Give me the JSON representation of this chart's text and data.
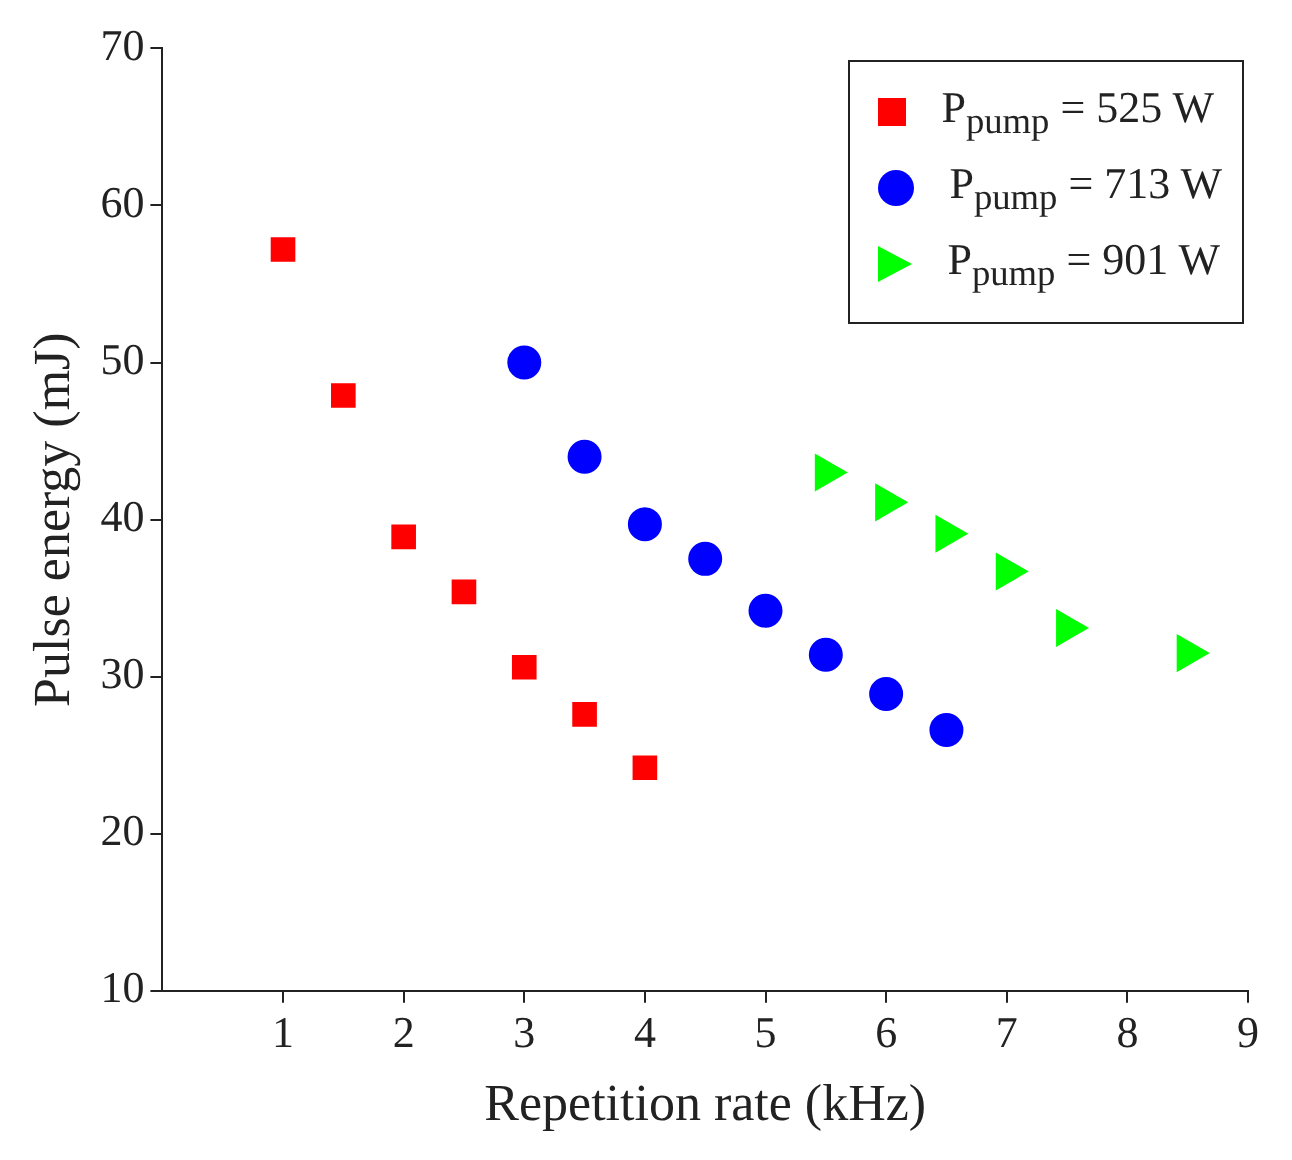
{
  "chart_data": {
    "type": "scatter",
    "xlabel": "Repetition rate (kHz)",
    "ylabel": "Pulse energy (mJ)",
    "xlim": [
      0,
      9
    ],
    "xticks": [
      1,
      2,
      3,
      4,
      5,
      6,
      7,
      8,
      9
    ],
    "ylim": [
      10,
      70
    ],
    "yticks": [
      10,
      20,
      30,
      40,
      50,
      60,
      70
    ],
    "grid": false,
    "legend": "top right",
    "series": [
      {
        "name": "P$_{pump}$ = 525 W",
        "color": "#ff0000",
        "marker": "square",
        "x": [
          1,
          1.5,
          2,
          2.5,
          3,
          3.5,
          4
        ],
        "values": [
          57.2,
          47.9,
          38.9,
          35.4,
          30.6,
          27.6,
          24.2
        ]
      },
      {
        "name": "P$_{pump}$ = 713 W",
        "color": "#0000ff",
        "marker": "circle",
        "x": [
          3,
          3.5,
          4,
          4.5,
          5,
          5.5,
          6,
          6.5
        ],
        "values": [
          50,
          44,
          39.7,
          37.5,
          34.2,
          31.4,
          28.9,
          26.6
        ]
      },
      {
        "name": "P$_{pump}$ = 901 W",
        "color": "#00ff00",
        "marker": "triangle",
        "x": [
          5.5,
          6,
          6.5,
          7,
          7.5,
          8.5
        ],
        "values": [
          43,
          41.1,
          39.1,
          36.7,
          33.1,
          31.5
        ]
      }
    ]
  }
}
